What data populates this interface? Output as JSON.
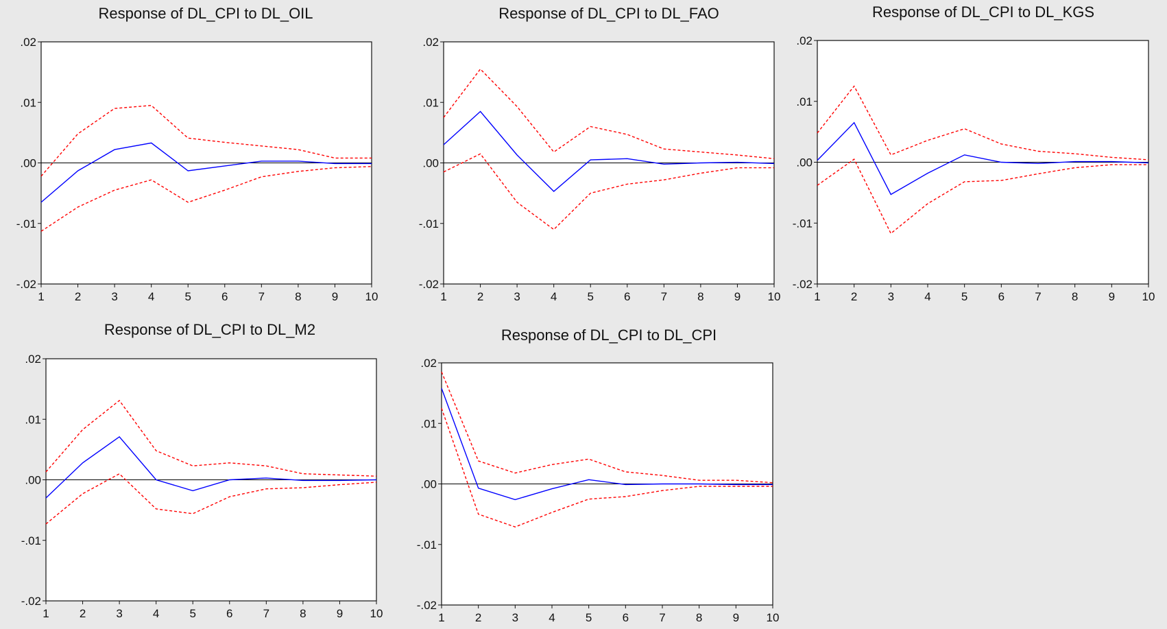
{
  "colors": {
    "background": "#e9e9e9",
    "response": "#0000ff",
    "band": "#ff0000",
    "zero_line": "#000000"
  },
  "chart_data": [
    {
      "type": "line",
      "title": "Response of DL_CPI to DL_OIL",
      "x": [
        1,
        2,
        3,
        4,
        5,
        6,
        7,
        8,
        9,
        10
      ],
      "ylim": [
        -0.02,
        0.02
      ],
      "yticks": [
        ".02",
        ".01",
        ".00",
        "-.01",
        "-.02"
      ],
      "xticks": [
        "1",
        "2",
        "3",
        "4",
        "5",
        "6",
        "7",
        "8",
        "9",
        "10"
      ],
      "series": [
        {
          "role": "response",
          "values": [
            -0.0065,
            -0.0013,
            0.0022,
            0.0033,
            -0.0013,
            -0.0005,
            0.0003,
            0.0003,
            -0.0001,
            -0.0001
          ]
        },
        {
          "role": "upper",
          "values": [
            -0.0022,
            0.0048,
            0.009,
            0.0095,
            0.0041,
            0.0034,
            0.0028,
            0.0022,
            0.0008,
            0.0008
          ]
        },
        {
          "role": "lower",
          "values": [
            -0.0113,
            -0.0073,
            -0.0045,
            -0.0028,
            -0.0065,
            -0.0045,
            -0.0023,
            -0.0014,
            -0.0008,
            -0.0006
          ]
        }
      ]
    },
    {
      "type": "line",
      "title": "Response of DL_CPI to DL_FAO",
      "x": [
        1,
        2,
        3,
        4,
        5,
        6,
        7,
        8,
        9,
        10
      ],
      "ylim": [
        -0.02,
        0.02
      ],
      "yticks": [
        ".02",
        ".01",
        ".00",
        "-.01",
        "-.02"
      ],
      "xticks": [
        "1",
        "2",
        "3",
        "4",
        "5",
        "6",
        "7",
        "8",
        "9",
        "10"
      ],
      "series": [
        {
          "role": "response",
          "values": [
            0.003,
            0.0085,
            0.0013,
            -0.0047,
            0.0005,
            0.0007,
            -0.0002,
            0,
            0.0001,
            -0.0001
          ]
        },
        {
          "role": "upper",
          "values": [
            0.0075,
            0.0155,
            0.0093,
            0.0018,
            0.006,
            0.0047,
            0.0023,
            0.0018,
            0.0013,
            0.0007
          ]
        },
        {
          "role": "lower",
          "values": [
            -0.0015,
            0.0015,
            -0.0065,
            -0.011,
            -0.005,
            -0.0035,
            -0.0028,
            -0.0017,
            -0.0008,
            -0.0008
          ]
        }
      ]
    },
    {
      "type": "line",
      "title": "Response of DL_CPI to DL_KGS",
      "x": [
        1,
        2,
        3,
        4,
        5,
        6,
        7,
        8,
        9,
        10
      ],
      "ylim": [
        -0.02,
        0.02
      ],
      "yticks": [
        ".02",
        ".01",
        ".00",
        "-.01",
        "-.02"
      ],
      "xticks": [
        "1",
        "2",
        "3",
        "4",
        "5",
        "6",
        "7",
        "8",
        "9",
        "10"
      ],
      "series": [
        {
          "role": "response",
          "values": [
            0.0003,
            0.0065,
            -0.0053,
            -0.0018,
            0.0012,
            0,
            -0.0002,
            0.0001,
            0.0001,
            -0.0001
          ]
        },
        {
          "role": "upper",
          "values": [
            0.0048,
            0.0125,
            0.0012,
            0.0036,
            0.0055,
            0.003,
            0.0018,
            0.0014,
            0.0008,
            0.0004
          ]
        },
        {
          "role": "lower",
          "values": [
            -0.0038,
            0.0005,
            -0.0117,
            -0.0068,
            -0.0032,
            -0.003,
            -0.0019,
            -0.0009,
            -0.0004,
            -0.0004
          ]
        }
      ]
    },
    {
      "type": "line",
      "title": "Response of DL_CPI to DL_M2",
      "x": [
        1,
        2,
        3,
        4,
        5,
        6,
        7,
        8,
        9,
        10
      ],
      "ylim": [
        -0.02,
        0.02
      ],
      "yticks": [
        ".02",
        ".01",
        ".00",
        "-.01",
        "-.02"
      ],
      "xticks": [
        "1",
        "2",
        "3",
        "4",
        "5",
        "6",
        "7",
        "8",
        "9",
        "10"
      ],
      "series": [
        {
          "role": "response",
          "values": [
            -0.003,
            0.0028,
            0.0071,
            0,
            -0.0018,
            0,
            0.0003,
            -0.0001,
            -0.0001,
            0
          ]
        },
        {
          "role": "upper",
          "values": [
            0.0013,
            0.0083,
            0.0131,
            0.0048,
            0.0023,
            0.0028,
            0.0023,
            0.001,
            0.0008,
            0.0006
          ]
        },
        {
          "role": "lower",
          "values": [
            -0.0073,
            -0.0023,
            0.001,
            -0.0048,
            -0.0056,
            -0.0028,
            -0.0015,
            -0.0013,
            -0.0008,
            -0.0004
          ]
        }
      ]
    },
    {
      "type": "line",
      "title": "Response of DL_CPI to DL_CPI",
      "x": [
        1,
        2,
        3,
        4,
        5,
        6,
        7,
        8,
        9,
        10
      ],
      "ylim": [
        -0.02,
        0.02
      ],
      "yticks": [
        ".02",
        ".01",
        ".00",
        "-.01",
        "-.02"
      ],
      "xticks": [
        "1",
        "2",
        "3",
        "4",
        "5",
        "6",
        "7",
        "8",
        "9",
        "10"
      ],
      "series": [
        {
          "role": "response",
          "values": [
            0.0158,
            -0.0007,
            -0.0026,
            -0.0008,
            0.0007,
            -0.0001,
            0,
            0,
            -0.0001,
            -0.0001
          ]
        },
        {
          "role": "upper",
          "values": [
            0.0185,
            0.0038,
            0.0018,
            0.0032,
            0.0041,
            0.002,
            0.0014,
            0.0006,
            0.0006,
            0.0002
          ]
        },
        {
          "role": "lower",
          "values": [
            0.0125,
            -0.005,
            -0.0071,
            -0.0047,
            -0.0025,
            -0.0021,
            -0.0011,
            -0.0004,
            -0.0004,
            -0.0004
          ]
        }
      ]
    }
  ]
}
